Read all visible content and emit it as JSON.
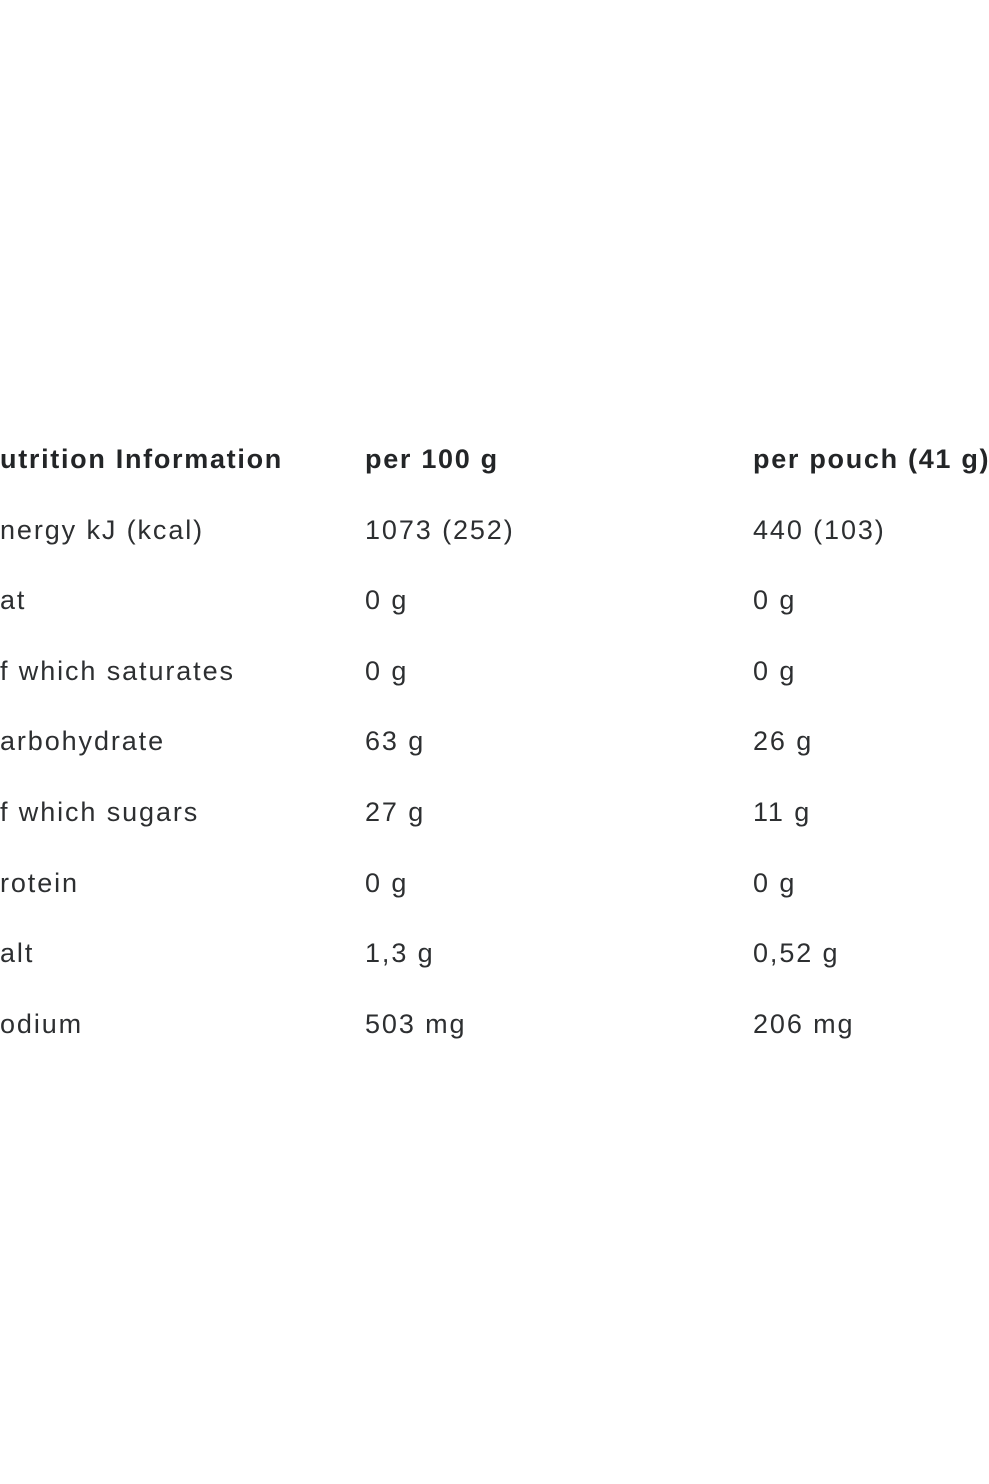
{
  "page": {
    "background_color": "#ffffff",
    "body_text_color": "#2d2f31",
    "header_text_color": "#232527"
  },
  "table": {
    "header": {
      "label_column": "utrition Information",
      "per_100g_column": "per 100 g",
      "per_pouch_column": "per pouch (41 g)"
    },
    "rows": [
      {
        "label": "nergy kJ (kcal)",
        "per_100g": "1073 (252)",
        "per_pouch": "440 (103)"
      },
      {
        "label": "at",
        "per_100g": "0 g",
        "per_pouch": "0 g"
      },
      {
        "label": "f which saturates",
        "per_100g": "0 g",
        "per_pouch": "0 g"
      },
      {
        "label": "arbohydrate",
        "per_100g": "63 g",
        "per_pouch": "26 g"
      },
      {
        "label": "f which sugars",
        "per_100g": "27 g",
        "per_pouch": "11 g"
      },
      {
        "label": "rotein",
        "per_100g": "0 g",
        "per_pouch": "0 g"
      },
      {
        "label": "alt",
        "per_100g": "1,3 g",
        "per_pouch": "0,52 g"
      },
      {
        "label": "odium",
        "per_100g": "503 mg",
        "per_pouch": "206 mg"
      }
    ]
  }
}
